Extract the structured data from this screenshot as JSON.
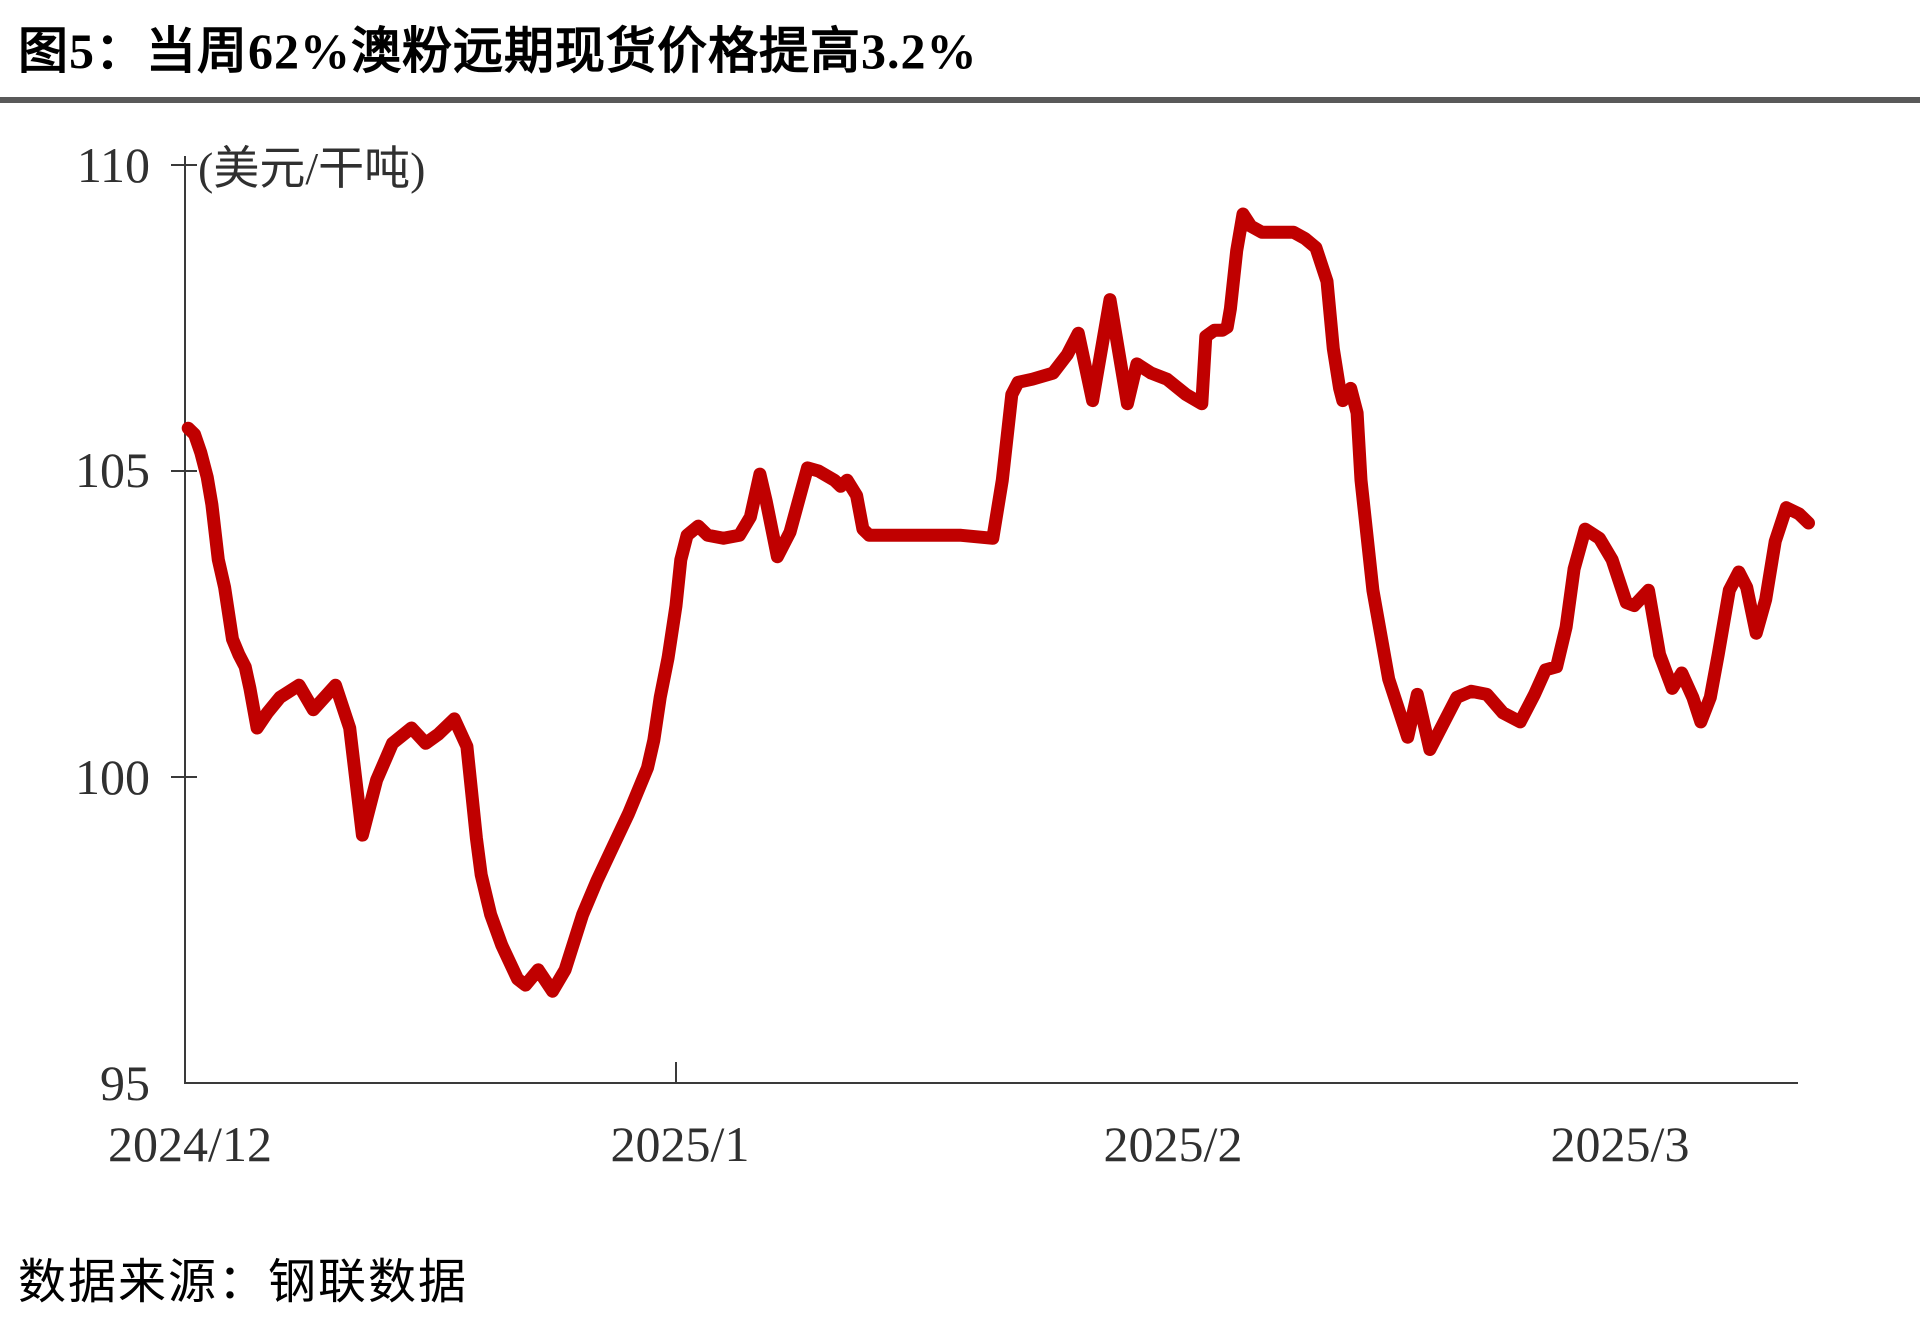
{
  "page": {
    "title": "图5：当周62%澳粉远期现货价格提高3.2%",
    "source": "数据来源：钢联数据"
  },
  "chart_data": {
    "type": "line",
    "title": "图5：当周62%澳粉远期现货价格提高3.2%",
    "unit_label": "(美元/干吨)",
    "grid": "off",
    "legend": "none",
    "line_color": "#C00000",
    "y_axis": {
      "min": 95,
      "max": 110,
      "tick_values": [
        110,
        105,
        100,
        95
      ],
      "tick_labels": [
        "110",
        "105",
        "100",
        "95"
      ]
    },
    "x_axis": {
      "start_date": "2024/12/1",
      "tick_labels": [
        "2024/12",
        "2025/1",
        "2025/2",
        "2025/3"
      ],
      "tick_label_day_offsets": [
        0,
        31,
        62,
        90
      ],
      "axis_tick_day_offsets": [
        31
      ]
    },
    "series": [
      {
        "name": "62%澳粉远期现货价格",
        "x_unit": "days_from_2024/12/1",
        "points": [
          [
            0.2,
            105.7
          ],
          [
            0.6,
            105.6
          ],
          [
            1,
            105.3
          ],
          [
            1.4,
            104.9
          ],
          [
            1.7,
            104.45
          ],
          [
            2.1,
            103.55
          ],
          [
            2.5,
            103.1
          ],
          [
            3,
            102.25
          ],
          [
            3.4,
            102.0
          ],
          [
            3.8,
            101.8
          ],
          [
            4.1,
            101.45
          ],
          [
            4.55,
            100.8
          ],
          [
            5.2,
            101.05
          ],
          [
            6,
            101.3
          ],
          [
            7.2,
            101.5
          ],
          [
            8.1,
            101.1
          ],
          [
            9.5,
            101.5
          ],
          [
            10.4,
            100.8
          ],
          [
            11.2,
            99.05
          ],
          [
            12.1,
            99.95
          ],
          [
            13.1,
            100.55
          ],
          [
            14.3,
            100.8
          ],
          [
            15.2,
            100.55
          ],
          [
            16,
            100.7
          ],
          [
            17,
            100.95
          ],
          [
            17.8,
            100.5
          ],
          [
            18.4,
            99.0
          ],
          [
            18.7,
            98.4
          ],
          [
            19.3,
            97.75
          ],
          [
            20,
            97.25
          ],
          [
            21,
            96.7
          ],
          [
            21.5,
            96.6
          ],
          [
            22.3,
            96.85
          ],
          [
            23.2,
            96.5
          ],
          [
            24,
            96.85
          ],
          [
            25.1,
            97.75
          ],
          [
            26,
            98.3
          ],
          [
            27,
            98.85
          ],
          [
            28,
            99.4
          ],
          [
            29.2,
            100.15
          ],
          [
            29.6,
            100.6
          ],
          [
            30,
            101.3
          ],
          [
            30.5,
            101.95
          ],
          [
            31,
            102.8
          ],
          [
            31.3,
            103.55
          ],
          [
            31.7,
            103.95
          ],
          [
            32.4,
            104.1
          ],
          [
            33,
            103.95
          ],
          [
            34,
            103.9
          ],
          [
            35,
            103.95
          ],
          [
            35.7,
            104.25
          ],
          [
            36.3,
            104.95
          ],
          [
            36.7,
            104.5
          ],
          [
            37.4,
            103.6
          ],
          [
            38.2,
            104.0
          ],
          [
            39.3,
            105.05
          ],
          [
            40,
            105.0
          ],
          [
            41,
            104.85
          ],
          [
            41.4,
            104.75
          ],
          [
            41.8,
            104.85
          ],
          [
            42.4,
            104.6
          ],
          [
            42.8,
            104.05
          ],
          [
            43.2,
            103.95
          ],
          [
            45,
            103.95
          ],
          [
            47,
            103.95
          ],
          [
            49,
            103.95
          ],
          [
            51,
            103.9
          ],
          [
            51.6,
            104.85
          ],
          [
            52.2,
            106.25
          ],
          [
            52.6,
            106.45
          ],
          [
            53.5,
            106.5
          ],
          [
            54.8,
            106.6
          ],
          [
            55.7,
            106.9
          ],
          [
            56.4,
            107.25
          ],
          [
            57.3,
            106.15
          ],
          [
            58.4,
            107.8
          ],
          [
            59.5,
            106.1
          ],
          [
            60.1,
            106.75
          ],
          [
            61,
            106.6
          ],
          [
            62,
            106.5
          ],
          [
            63.2,
            106.25
          ],
          [
            64.2,
            106.1
          ],
          [
            64.45,
            107.2
          ],
          [
            65,
            107.3
          ],
          [
            65.5,
            107.3
          ],
          [
            65.8,
            107.35
          ],
          [
            66,
            107.65
          ],
          [
            66.4,
            108.6
          ],
          [
            66.8,
            109.2
          ],
          [
            67.3,
            109.0
          ],
          [
            68,
            108.9
          ],
          [
            69,
            108.9
          ],
          [
            70,
            108.9
          ],
          [
            70.7,
            108.8
          ],
          [
            71.4,
            108.65
          ],
          [
            72.1,
            108.1
          ],
          [
            72.5,
            107.0
          ],
          [
            72.9,
            106.35
          ],
          [
            73.1,
            106.15
          ],
          [
            73.6,
            106.35
          ],
          [
            74,
            105.95
          ],
          [
            74.25,
            104.85
          ],
          [
            75,
            103.05
          ],
          [
            76,
            101.6
          ],
          [
            77.2,
            100.65
          ],
          [
            77.8,
            101.35
          ],
          [
            78.6,
            100.45
          ],
          [
            79.3,
            100.8
          ],
          [
            80.3,
            101.3
          ],
          [
            81.2,
            101.4
          ],
          [
            82.2,
            101.35
          ],
          [
            83.2,
            101.05
          ],
          [
            84.3,
            100.9
          ],
          [
            85.2,
            101.35
          ],
          [
            85.9,
            101.75
          ],
          [
            86.6,
            101.8
          ],
          [
            87.2,
            102.45
          ],
          [
            87.7,
            103.4
          ],
          [
            88.4,
            104.05
          ],
          [
            89.3,
            103.9
          ],
          [
            90.1,
            103.55
          ],
          [
            91,
            102.85
          ],
          [
            91.5,
            102.8
          ],
          [
            92.4,
            103.05
          ],
          [
            93.1,
            102.0
          ],
          [
            93.9,
            101.45
          ],
          [
            94.5,
            101.7
          ],
          [
            95.2,
            101.3
          ],
          [
            95.7,
            100.9
          ],
          [
            96.3,
            101.3
          ],
          [
            96.8,
            102.0
          ],
          [
            97.5,
            103.05
          ],
          [
            98.1,
            103.35
          ],
          [
            98.6,
            103.1
          ],
          [
            99.2,
            102.35
          ],
          [
            99.8,
            102.9
          ],
          [
            100.4,
            103.85
          ],
          [
            101.1,
            104.4
          ],
          [
            101.9,
            104.3
          ],
          [
            102.5,
            104.15
          ]
        ]
      }
    ]
  }
}
